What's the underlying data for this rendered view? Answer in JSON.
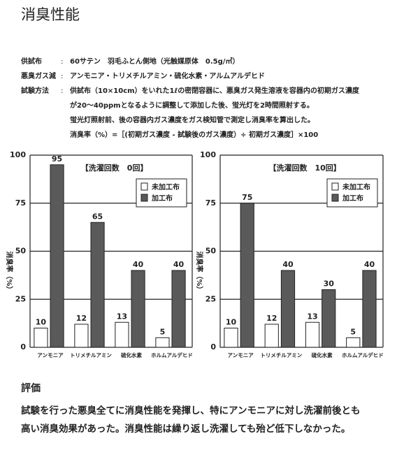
{
  "header": {
    "title": "消臭性能",
    "separator": ":",
    "rows": [
      {
        "label": "供試布",
        "lines": [
          "60サテン　羽毛ふとん側地（光触媒原体　0.5g/㎡）"
        ]
      },
      {
        "label": "悪臭ガス減",
        "lines": [
          "アンモニア・トリメチルアミン・硫化水素・アルムアルデヒド"
        ]
      },
      {
        "label": "試験方法",
        "lines": [
          "供試布（10×10cm）をいれた1ℓの密閉容器に、悪臭ガス発生溶液を容器内の初期ガス濃度",
          "が20～40ppmとなるように調整して添加した後、蛍光灯を2時間照射する。",
          "蛍光灯照射前、後の容器内ガス濃度をガス検知管で測定し消臭率を算出した。",
          "消臭率（%）=［(初期ガス濃度 - 試験後のガス濃度）÷ 初期ガス濃度］×100"
        ]
      }
    ]
  },
  "chart_data": [
    {
      "type": "bar",
      "annotation": "【洗濯回数　0回】",
      "y_label": "消臭率（%）",
      "categories": [
        "アンモニア",
        "トリメチルアミン",
        "硫化水素",
        "ホルムアルデヒド"
      ],
      "series": [
        {
          "name": "未加工布",
          "color": "#ffffff",
          "values": [
            10,
            12,
            13,
            5
          ]
        },
        {
          "name": "加工布",
          "color": "#5a5a5a",
          "values": [
            95,
            65,
            40,
            40
          ]
        }
      ],
      "ylim": [
        0,
        100
      ],
      "yticks": [
        0,
        25,
        50,
        75,
        100
      ],
      "grid": true,
      "legend": "top-right"
    },
    {
      "type": "bar",
      "annotation": "【洗濯回数　10回】",
      "y_label": "消臭率（%）",
      "categories": [
        "アンモニア",
        "トリメチルアミン",
        "硫化水素",
        "ホルムアルデヒド"
      ],
      "series": [
        {
          "name": "未加工布",
          "color": "#ffffff",
          "values": [
            10,
            12,
            13,
            5
          ]
        },
        {
          "name": "加工布",
          "color": "#5a5a5a",
          "values": [
            75,
            40,
            30,
            40
          ]
        }
      ],
      "ylim": [
        0,
        100
      ],
      "yticks": [
        0,
        25,
        50,
        75,
        100
      ],
      "grid": true,
      "legend": "top-right"
    }
  ],
  "evaluation": {
    "title": "評価",
    "lines": [
      "試験を行った悪臭全てに消臭性能を発揮し、特にアンモニアに対し洗濯前後とも",
      "高い消臭効果があった。消臭性能は繰り返し洗濯しても殆ど低下しなかった。"
    ]
  }
}
